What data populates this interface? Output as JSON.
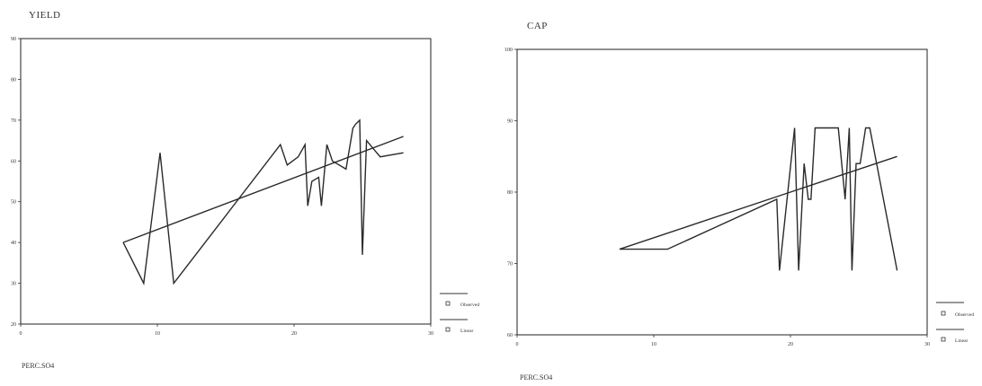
{
  "chart_data": [
    {
      "type": "line",
      "title": "YIELD",
      "xlabel": "PERC.SO4",
      "ylabel": "",
      "xlim": [
        0,
        30
      ],
      "ylim": [
        20,
        90
      ],
      "x_ticks": [
        "0",
        "10",
        "20",
        "30"
      ],
      "y_ticks": [
        "20",
        "30",
        "40",
        "50",
        "60",
        "70",
        "80",
        "90"
      ],
      "legend_placement": "bottom-right",
      "series": [
        {
          "name": "Observed",
          "x": [
            7.5,
            9.0,
            10.2,
            11.2,
            19.0,
            19.5,
            20.3,
            20.8,
            21.0,
            21.3,
            21.8,
            22.0,
            22.4,
            22.8,
            23.8,
            24.3,
            24.5,
            24.8,
            25.0,
            25.3,
            25.8,
            26.3,
            28.0
          ],
          "y": [
            40,
            30,
            62,
            30,
            64,
            59,
            61,
            64,
            49,
            55,
            56,
            49,
            64,
            60,
            58,
            68,
            69,
            70,
            37,
            65,
            63,
            61,
            62
          ]
        },
        {
          "name": "Linear",
          "x": [
            7.5,
            28.0
          ],
          "y": [
            40,
            66
          ]
        }
      ]
    },
    {
      "type": "line",
      "title": "CAP",
      "xlabel": "PERC.SO4",
      "ylabel": "",
      "xlim": [
        0,
        30
      ],
      "ylim": [
        60,
        100
      ],
      "x_ticks": [
        "0",
        "10",
        "20",
        "30"
      ],
      "y_ticks": [
        "60",
        "70",
        "80",
        "90",
        "100"
      ],
      "legend_placement": "bottom-right",
      "series": [
        {
          "name": "Observed",
          "x": [
            7.5,
            11.0,
            19.0,
            19.2,
            20.3,
            20.6,
            21.0,
            21.3,
            21.5,
            21.8,
            23.5,
            24.0,
            24.3,
            24.5,
            24.8,
            25.1,
            25.5,
            25.8,
            27.8
          ],
          "y": [
            72,
            72,
            79,
            69,
            89,
            69,
            84,
            79,
            79,
            89,
            89,
            79,
            89,
            69,
            84,
            84,
            89,
            89,
            69
          ]
        },
        {
          "name": "Linear",
          "x": [
            7.5,
            27.8
          ],
          "y": [
            72,
            85
          ]
        }
      ]
    }
  ]
}
